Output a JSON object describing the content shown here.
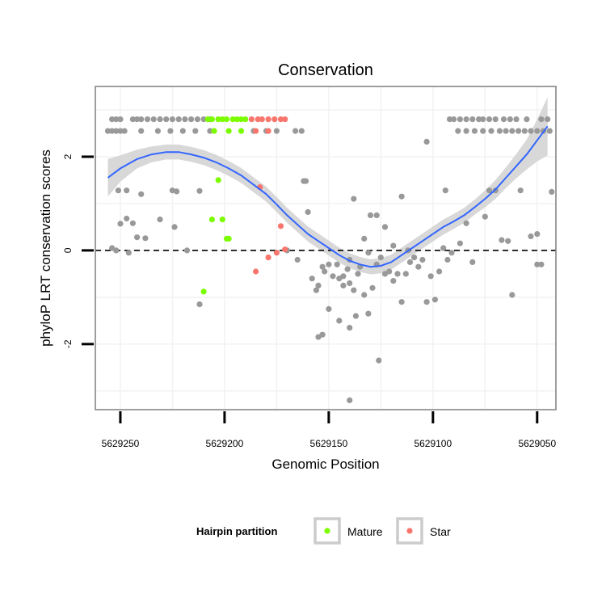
{
  "chart_data": {
    "type": "scatter",
    "title": "Conservation",
    "xlabel": "Genomic Position",
    "ylabel": "phyloP LRT conservation scores",
    "xlim": [
      5629262,
      5629041
    ],
    "ylim": [
      -3.4,
      3.5
    ],
    "x_reversed": true,
    "xticks": [
      5629250,
      5629200,
      5629150,
      5629100,
      5629050
    ],
    "xtick_labels": [
      "5629250",
      "5629200",
      "5629150",
      "5629100",
      "5629050"
    ],
    "yticks": [
      -2,
      0,
      2
    ],
    "ytick_labels": [
      "-2",
      "0",
      "2"
    ],
    "grid": true,
    "reference_line": {
      "y": 0,
      "style": "dashed"
    },
    "legend": {
      "title": "Hairpin partition",
      "position": "bottom",
      "entries": [
        {
          "label": "Mature",
          "color": "#7CFC00"
        },
        {
          "label": "Star",
          "color": "#F8766D"
        }
      ]
    },
    "colors": {
      "other": "#999999",
      "mature": "#7CFC00",
      "star": "#F8766D",
      "smooth": "#3366FF",
      "ribbon": "#D4D4D4"
    },
    "series": [
      {
        "name": "Other",
        "color": "#999999",
        "points": [
          [
            5629256,
            2.55
          ],
          [
            5629254,
            2.55
          ],
          [
            5629252,
            2.55
          ],
          [
            5629250,
            2.55
          ],
          [
            5629248,
            2.55
          ],
          [
            5629240,
            2.55
          ],
          [
            5629232,
            2.55
          ],
          [
            5629226,
            2.55
          ],
          [
            5629220,
            2.55
          ],
          [
            5629214,
            2.55
          ],
          [
            5629207,
            2.55
          ],
          [
            5629186,
            2.55
          ],
          [
            5629180,
            2.55
          ],
          [
            5629175,
            2.55
          ],
          [
            5629166,
            2.55
          ],
          [
            5629163,
            2.55
          ],
          [
            5629254,
            2.8
          ],
          [
            5629252,
            2.8
          ],
          [
            5629250,
            2.8
          ],
          [
            5629244,
            2.8
          ],
          [
            5629242,
            2.8
          ],
          [
            5629240,
            2.8
          ],
          [
            5629237,
            2.8
          ],
          [
            5629234,
            2.8
          ],
          [
            5629231,
            2.8
          ],
          [
            5629228,
            2.8
          ],
          [
            5629225,
            2.8
          ],
          [
            5629222,
            2.8
          ],
          [
            5629219,
            2.8
          ],
          [
            5629216,
            2.8
          ],
          [
            5629213,
            2.8
          ],
          [
            5629210,
            2.8
          ],
          [
            5629207,
            2.8
          ],
          [
            5629092,
            2.8
          ],
          [
            5629090,
            2.8
          ],
          [
            5629087,
            2.8
          ],
          [
            5629084,
            2.8
          ],
          [
            5629081,
            2.8
          ],
          [
            5629078,
            2.8
          ],
          [
            5629076,
            2.8
          ],
          [
            5629073,
            2.8
          ],
          [
            5629070,
            2.8
          ],
          [
            5629066,
            2.8
          ],
          [
            5629063,
            2.8
          ],
          [
            5629060,
            2.8
          ],
          [
            5629055,
            2.8
          ],
          [
            5629048,
            2.8
          ],
          [
            5629045,
            2.8
          ],
          [
            5629088,
            2.55
          ],
          [
            5629084,
            2.55
          ],
          [
            5629080,
            2.55
          ],
          [
            5629076,
            2.55
          ],
          [
            5629072,
            2.55
          ],
          [
            5629068,
            2.55
          ],
          [
            5629065,
            2.55
          ],
          [
            5629062,
            2.55
          ],
          [
            5629059,
            2.55
          ],
          [
            5629056,
            2.55
          ],
          [
            5629053,
            2.55
          ],
          [
            5629050,
            2.55
          ],
          [
            5629047,
            2.55
          ],
          [
            5629044,
            2.55
          ],
          [
            5629251,
            1.28
          ],
          [
            5629247,
            1.28
          ],
          [
            5629240,
            1.2
          ],
          [
            5629225,
            1.28
          ],
          [
            5629223,
            1.26
          ],
          [
            5629212,
            1.27
          ],
          [
            5629162,
            1.48
          ],
          [
            5629161,
            1.48
          ],
          [
            5629138,
            1.1
          ],
          [
            5629115,
            1.15
          ],
          [
            5629103,
            2.32
          ],
          [
            5629094,
            1.28
          ],
          [
            5629073,
            1.28
          ],
          [
            5629070,
            1.28
          ],
          [
            5629058,
            1.28
          ],
          [
            5629043,
            1.25
          ],
          [
            5629250,
            0.57
          ],
          [
            5629247,
            0.68
          ],
          [
            5629244,
            0.58
          ],
          [
            5629242,
            0.28
          ],
          [
            5629238,
            0.26
          ],
          [
            5629231,
            0.66
          ],
          [
            5629224,
            0.5
          ],
          [
            5629140,
            -0.2
          ],
          [
            5629130,
            0.75
          ],
          [
            5629127,
            0.75
          ],
          [
            5629123,
            0.5
          ],
          [
            5629084,
            0.58
          ],
          [
            5629075,
            0.72
          ],
          [
            5629067,
            0.22
          ],
          [
            5629053,
            0.3
          ],
          [
            5629050,
            0.35
          ],
          [
            5629254,
            0.05
          ],
          [
            5629252,
            0.0
          ],
          [
            5629246,
            -0.05
          ],
          [
            5629218,
            0.0
          ],
          [
            5629212,
            -1.15
          ],
          [
            5629170,
            0.0
          ],
          [
            5629165,
            -0.2
          ],
          [
            5629160,
            0.82
          ],
          [
            5629158,
            -0.6
          ],
          [
            5629156,
            -0.85
          ],
          [
            5629155,
            -0.75
          ],
          [
            5629153,
            -0.35
          ],
          [
            5629152,
            -0.45
          ],
          [
            5629150,
            -0.3
          ],
          [
            5629148,
            -0.55
          ],
          [
            5629146,
            -0.3
          ],
          [
            5629145,
            -0.6
          ],
          [
            5629143,
            -0.75
          ],
          [
            5629141,
            -0.4
          ],
          [
            5629140,
            -0.7
          ],
          [
            5629138,
            -0.85
          ],
          [
            5629136,
            -0.5
          ],
          [
            5629135,
            -0.35
          ],
          [
            5629133,
            -0.95
          ],
          [
            5629131,
            -1.35
          ],
          [
            5629129,
            -0.8
          ],
          [
            5629127,
            -0.3
          ],
          [
            5629125,
            -0.15
          ],
          [
            5629123,
            -0.5
          ],
          [
            5629121,
            -0.45
          ],
          [
            5629119,
            -0.65
          ],
          [
            5629117,
            -0.5
          ],
          [
            5629115,
            -1.1
          ],
          [
            5629113,
            -0.5
          ],
          [
            5629111,
            -0.25
          ],
          [
            5629109,
            -0.15
          ],
          [
            5629107,
            -0.35
          ],
          [
            5629105,
            -0.2
          ],
          [
            5629103,
            -1.1
          ],
          [
            5629101,
            -0.55
          ],
          [
            5629099,
            -1.05
          ],
          [
            5629097,
            -0.45
          ],
          [
            5629095,
            0.05
          ],
          [
            5629093,
            -0.2
          ],
          [
            5629091,
            -0.05
          ],
          [
            5629087,
            0.15
          ],
          [
            5629081,
            -0.25
          ],
          [
            5629064,
            0.2
          ],
          [
            5629050,
            -0.3
          ],
          [
            5629048,
            -0.3
          ],
          [
            5629062,
            -0.95
          ],
          [
            5629150,
            -1.25
          ],
          [
            5629155,
            -1.85
          ],
          [
            5629153,
            -1.8
          ],
          [
            5629145,
            -1.5
          ],
          [
            5629140,
            -1.65
          ],
          [
            5629131,
            -0.05
          ],
          [
            5629133,
            0.25
          ],
          [
            5629126,
            -2.35
          ],
          [
            5629137,
            -1.4
          ],
          [
            5629143,
            -0.55
          ],
          [
            5629119,
            0.1
          ],
          [
            5629112,
            0.0
          ],
          [
            5629140,
            -3.2
          ]
        ]
      },
      {
        "name": "Mature",
        "color": "#7CFC00",
        "points": [
          [
            5629208,
            2.8
          ],
          [
            5629206,
            2.8
          ],
          [
            5629203,
            2.8
          ],
          [
            5629201,
            2.8
          ],
          [
            5629199,
            2.8
          ],
          [
            5629196,
            2.8
          ],
          [
            5629194,
            2.8
          ],
          [
            5629192,
            2.8
          ],
          [
            5629190,
            2.8
          ],
          [
            5629205,
            2.55
          ],
          [
            5629198,
            2.55
          ],
          [
            5629192,
            2.55
          ],
          [
            5629203,
            1.5
          ],
          [
            5629206,
            0.66
          ],
          [
            5629201,
            0.66
          ],
          [
            5629199,
            0.25
          ],
          [
            5629198,
            0.25
          ],
          [
            5629210,
            -0.88
          ]
        ]
      },
      {
        "name": "Star",
        "color": "#F8766D",
        "points": [
          [
            5629187,
            2.8
          ],
          [
            5629184,
            2.8
          ],
          [
            5629182,
            2.8
          ],
          [
            5629179,
            2.8
          ],
          [
            5629176,
            2.8
          ],
          [
            5629173,
            2.8
          ],
          [
            5629171,
            2.8
          ],
          [
            5629185,
            2.55
          ],
          [
            5629179,
            2.55
          ],
          [
            5629183,
            1.35
          ],
          [
            5629173,
            0.52
          ],
          [
            5629185,
            -0.45
          ],
          [
            5629179,
            -0.15
          ],
          [
            5629175,
            -0.05
          ],
          [
            5629171,
            0.02
          ]
        ]
      }
    ],
    "smooth": {
      "x": [
        5629256,
        5629250,
        5629242,
        5629235,
        5629228,
        5629222,
        5629216,
        5629210,
        5629204,
        5629198,
        5629192,
        5629186,
        5629180,
        5629175,
        5629170,
        5629165,
        5629160,
        5629155,
        5629150,
        5629145,
        5629140,
        5629135,
        5629130,
        5629125,
        5629120,
        5629115,
        5629110,
        5629105,
        5629100,
        5629095,
        5629090,
        5629085,
        5629080,
        5629075,
        5629070,
        5629065,
        5629060,
        5629055,
        5629050,
        5629045
      ],
      "y": [
        1.55,
        1.75,
        1.95,
        2.05,
        2.1,
        2.1,
        2.05,
        1.98,
        1.88,
        1.75,
        1.6,
        1.4,
        1.2,
        0.98,
        0.75,
        0.55,
        0.35,
        0.2,
        0.05,
        -0.1,
        -0.22,
        -0.3,
        -0.35,
        -0.33,
        -0.25,
        -0.1,
        0.05,
        0.2,
        0.35,
        0.5,
        0.62,
        0.75,
        0.92,
        1.1,
        1.3,
        1.55,
        1.8,
        2.05,
        2.35,
        2.65
      ],
      "se": [
        0.4,
        0.28,
        0.2,
        0.17,
        0.16,
        0.16,
        0.16,
        0.16,
        0.16,
        0.16,
        0.16,
        0.16,
        0.16,
        0.16,
        0.16,
        0.16,
        0.16,
        0.16,
        0.16,
        0.16,
        0.16,
        0.16,
        0.16,
        0.16,
        0.16,
        0.16,
        0.16,
        0.16,
        0.16,
        0.16,
        0.16,
        0.16,
        0.16,
        0.18,
        0.2,
        0.22,
        0.26,
        0.32,
        0.45,
        0.62
      ]
    }
  }
}
